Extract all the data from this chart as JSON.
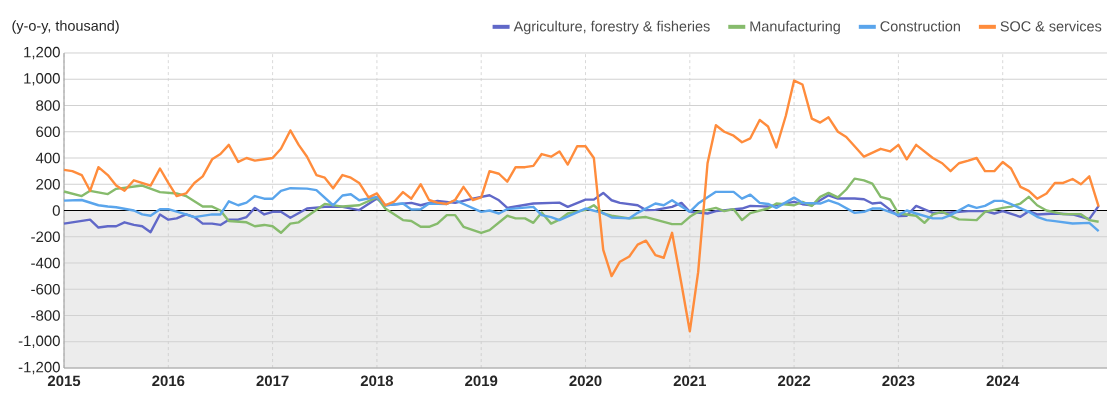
{
  "chart_data": {
    "type": "line",
    "ylabel": "(y-o-y, thousand)",
    "xlim": [
      "2015",
      "2025"
    ],
    "xticks": [
      "2015",
      "2016",
      "2017",
      "2018",
      "2019",
      "2020",
      "2021",
      "2022",
      "2023",
      "2024"
    ],
    "ylim": [
      -1200,
      1200
    ],
    "yticks": [
      {
        "value": -1200,
        "label": "-1,200"
      },
      {
        "value": -1000,
        "label": "-1,000"
      },
      -800,
      -600,
      -400,
      -200,
      0,
      200,
      400,
      600,
      800,
      {
        "value": 1000,
        "label": "1,000"
      },
      {
        "value": 1200,
        "label": "1,200"
      }
    ],
    "grid": true,
    "legend": "top right",
    "line_style": "solid",
    "bands": [
      {
        "axis": "y",
        "from": -1200,
        "to": 0,
        "color": "#ececec"
      }
    ],
    "ref_lines": [
      {
        "axis": "y",
        "value": 0,
        "color": "#000000"
      }
    ],
    "series": [
      {
        "name": "Agriculture, forestry & fisheries",
        "color": "#6068c8",
        "x": [
          "2015-01",
          "2015-04",
          "2015-05",
          "2015-06",
          "2015-07",
          "2015-08",
          "2015-09",
          "2015-10",
          "2015-11",
          "2015-12",
          "2016-01",
          "2016-02",
          "2016-03",
          "2016-04",
          "2016-05",
          "2016-06",
          "2016-07",
          "2016-08",
          "2016-09",
          "2016-10",
          "2016-11",
          "2016-12",
          "2017-01",
          "2017-02",
          "2017-03",
          "2017-05",
          "2017-07",
          "2017-09",
          "2017-11",
          "2018-01",
          "2018-02",
          "2018-05",
          "2018-06",
          "2018-08",
          "2018-10",
          "2018-12",
          "2019-02",
          "2019-03",
          "2019-04",
          "2019-07",
          "2019-10",
          "2019-11",
          "2020-01",
          "2020-02",
          "2020-03",
          "2020-04",
          "2020-05",
          "2020-07",
          "2020-08",
          "2020-09",
          "2020-11",
          "2020-12",
          "2021-01",
          "2021-03",
          "2021-04",
          "2021-07",
          "2021-08",
          "2021-10",
          "2022-01",
          "2022-02",
          "2022-03",
          "2022-05",
          "2022-06",
          "2022-08",
          "2022-09",
          "2022-10",
          "2022-11",
          "2023-01",
          "2023-02",
          "2023-03",
          "2023-05",
          "2023-07",
          "2023-09",
          "2023-11",
          "2023-12",
          "2024-01",
          "2024-03",
          "2024-04",
          "2024-05",
          "2024-07",
          "2024-09",
          "2024-11",
          "2024-12"
        ],
        "values": [
          -100,
          -70,
          -130,
          -120,
          -120,
          -90,
          -110,
          -120,
          -165,
          -30,
          -70,
          -60,
          -30,
          -50,
          -100,
          -100,
          -110,
          -70,
          -70,
          -50,
          20,
          -30,
          -10,
          -10,
          -55,
          15,
          28,
          28,
          3,
          91,
          40,
          58,
          40,
          73,
          58,
          91,
          116,
          78,
          20,
          53,
          60,
          28,
          83,
          83,
          134,
          78,
          58,
          40,
          3,
          5,
          28,
          58,
          -10,
          -23,
          -5,
          15,
          35,
          30,
          66,
          48,
          40,
          116,
          91,
          91,
          86,
          53,
          60,
          -43,
          -40,
          35,
          -18,
          -15,
          -5,
          -5,
          -23,
          -5,
          -48,
          -5,
          -30,
          -23,
          -30,
          -66,
          35
        ]
      },
      {
        "name": "Manufacturing",
        "color": "#86bb6c",
        "x": [
          "2015-01",
          "2015-03",
          "2015-04",
          "2015-06",
          "2015-07",
          "2015-10",
          "2015-12",
          "2016-02",
          "2016-03",
          "2016-05",
          "2016-06",
          "2016-07",
          "2016-08",
          "2016-10",
          "2016-11",
          "2016-12",
          "2017-01",
          "2017-02",
          "2017-03",
          "2017-04",
          "2017-07",
          "2017-09",
          "2017-11",
          "2018-01",
          "2018-02",
          "2018-04",
          "2018-05",
          "2018-06",
          "2018-07",
          "2018-08",
          "2018-09",
          "2018-10",
          "2018-11",
          "2019-01",
          "2019-02",
          "2019-04",
          "2019-05",
          "2019-06",
          "2019-07",
          "2019-08",
          "2019-09",
          "2019-10",
          "2019-11",
          "2020-01",
          "2020-02",
          "2020-03",
          "2020-04",
          "2020-06",
          "2020-08",
          "2020-09",
          "2020-11",
          "2020-12",
          "2021-01",
          "2021-02",
          "2021-04",
          "2021-05",
          "2021-06",
          "2021-07",
          "2021-08",
          "2021-10",
          "2021-11",
          "2022-01",
          "2022-02",
          "2022-03",
          "2022-04",
          "2022-05",
          "2022-06",
          "2022-07",
          "2022-08",
          "2022-09",
          "2022-10",
          "2022-11",
          "2022-12",
          "2023-01",
          "2023-02",
          "2023-03",
          "2023-04",
          "2023-05",
          "2023-06",
          "2023-07",
          "2023-08",
          "2023-10",
          "2023-11",
          "2024-01",
          "2024-02",
          "2024-03",
          "2024-04",
          "2024-05",
          "2024-06",
          "2024-08",
          "2024-10",
          "2024-11",
          "2024-12"
        ],
        "values": [
          145,
          110,
          150,
          125,
          165,
          190,
          140,
          130,
          110,
          30,
          30,
          0,
          -80,
          -90,
          -120,
          -110,
          -120,
          -170,
          -100,
          -90,
          50,
          30,
          40,
          100,
          15,
          -73,
          -80,
          -124,
          -124,
          -100,
          -35,
          -35,
          -124,
          -170,
          -150,
          -40,
          -60,
          -60,
          -94,
          -15,
          -100,
          -70,
          -23,
          5,
          40,
          -23,
          -40,
          -60,
          -50,
          -70,
          -104,
          -104,
          -48,
          -10,
          20,
          -5,
          10,
          -73,
          -20,
          15,
          53,
          40,
          66,
          35,
          104,
          134,
          100,
          160,
          243,
          230,
          205,
          104,
          84,
          -23,
          -30,
          -40,
          -94,
          -30,
          -10,
          -40,
          -68,
          -73,
          -10,
          20,
          30,
          53,
          104,
          40,
          0,
          -28,
          -28,
          -73,
          -86
        ]
      },
      {
        "name": "Construction",
        "color": "#5aa5ec",
        "x": [
          "2015-01",
          "2015-03",
          "2015-05",
          "2015-06",
          "2015-07",
          "2015-09",
          "2015-10",
          "2015-11",
          "2015-12",
          "2016-01",
          "2016-03",
          "2016-04",
          "2016-06",
          "2016-07",
          "2016-08",
          "2016-09",
          "2016-10",
          "2016-11",
          "2016-12",
          "2017-01",
          "2017-02",
          "2017-03",
          "2017-05",
          "2017-06",
          "2017-08",
          "2017-09",
          "2017-10",
          "2017-11",
          "2018-01",
          "2018-02",
          "2018-04",
          "2018-05",
          "2018-06",
          "2018-07",
          "2018-09",
          "2018-10",
          "2019-01",
          "2019-02",
          "2019-03",
          "2019-04",
          "2019-07",
          "2019-08",
          "2019-09",
          "2019-10",
          "2020-01",
          "2020-03",
          "2020-04",
          "2020-06",
          "2020-07",
          "2020-09",
          "2020-10",
          "2020-11",
          "2020-12",
          "2021-01",
          "2021-02",
          "2021-04",
          "2021-06",
          "2021-07",
          "2021-08",
          "2021-09",
          "2021-10",
          "2021-11",
          "2022-01",
          "2022-02",
          "2022-04",
          "2022-05",
          "2022-06",
          "2022-08",
          "2022-09",
          "2022-10",
          "2022-11",
          "2023-01",
          "2023-02",
          "2023-03",
          "2023-05",
          "2023-06",
          "2023-07",
          "2023-09",
          "2023-10",
          "2023-11",
          "2023-12",
          "2024-01",
          "2024-02",
          "2024-04",
          "2024-05",
          "2024-06",
          "2024-07",
          "2024-09",
          "2024-11",
          "2024-12"
        ],
        "values": [
          75,
          80,
          40,
          30,
          25,
          0,
          -30,
          -40,
          10,
          10,
          -30,
          -50,
          -30,
          -30,
          70,
          40,
          60,
          110,
          90,
          90,
          150,
          170,
          167,
          155,
          40,
          114,
          124,
          78,
          104,
          40,
          53,
          8,
          10,
          53,
          50,
          78,
          -10,
          0,
          -23,
          10,
          28,
          -35,
          -50,
          -73,
          15,
          -20,
          -53,
          -60,
          -18,
          53,
          40,
          78,
          30,
          -10,
          53,
          142,
          142,
          90,
          121,
          58,
          50,
          20,
          98,
          58,
          53,
          78,
          53,
          -18,
          -10,
          15,
          15,
          -35,
          0,
          -23,
          -60,
          -60,
          -35,
          40,
          20,
          35,
          73,
          73,
          48,
          -10,
          -48,
          -73,
          -81,
          -99,
          -94,
          -157
        ]
      },
      {
        "name": "SOC & services",
        "color": "#ff8c3c",
        "x": [
          "2015-01",
          "2015-02",
          "2015-03",
          "2015-04",
          "2015-05",
          "2015-06",
          "2015-07",
          "2015-08",
          "2015-09",
          "2015-10",
          "2015-11",
          "2015-12",
          "2016-01",
          "2016-02",
          "2016-03",
          "2016-04",
          "2016-05",
          "2016-06",
          "2016-07",
          "2016-08",
          "2016-09",
          "2016-10",
          "2016-11",
          "2016-12",
          "2017-01",
          "2017-02",
          "2017-03",
          "2017-04",
          "2017-05",
          "2017-06",
          "2017-07",
          "2017-08",
          "2017-09",
          "2017-10",
          "2017-11",
          "2017-12",
          "2018-01",
          "2018-02",
          "2018-03",
          "2018-04",
          "2018-05",
          "2018-06",
          "2018-07",
          "2018-08",
          "2018-09",
          "2018-10",
          "2018-11",
          "2018-12",
          "2019-01",
          "2019-02",
          "2019-03",
          "2019-04",
          "2019-05",
          "2019-06",
          "2019-07",
          "2019-08",
          "2019-09",
          "2019-10",
          "2019-11",
          "2019-12",
          "2020-01",
          "2020-02",
          "2020-03",
          "2020-04",
          "2020-05",
          "2020-06",
          "2020-07",
          "2020-08",
          "2020-09",
          "2020-10",
          "2020-11",
          "2020-12",
          "2021-01",
          "2021-02",
          "2021-03",
          "2021-04",
          "2021-05",
          "2021-06",
          "2021-07",
          "2021-08",
          "2021-09",
          "2021-10",
          "2021-11",
          "2021-12",
          "2022-01",
          "2022-02",
          "2022-03",
          "2022-04",
          "2022-05",
          "2022-06",
          "2022-07",
          "2022-08",
          "2022-09",
          "2022-10",
          "2022-11",
          "2022-12",
          "2023-01",
          "2023-02",
          "2023-03",
          "2023-04",
          "2023-05",
          "2023-06",
          "2023-07",
          "2023-08",
          "2023-09",
          "2023-10",
          "2023-11",
          "2023-12",
          "2024-01",
          "2024-02",
          "2024-03",
          "2024-04",
          "2024-05",
          "2024-06",
          "2024-07",
          "2024-08",
          "2024-09",
          "2024-10",
          "2024-11",
          "2024-12"
        ],
        "values": [
          310,
          300,
          270,
          150,
          330,
          270,
          190,
          150,
          230,
          210,
          190,
          320,
          210,
          110,
          130,
          210,
          260,
          390,
          430,
          500,
          370,
          400,
          380,
          390,
          400,
          470,
          610,
          500,
          410,
          270,
          250,
          170,
          270,
          250,
          210,
          100,
          130,
          40,
          70,
          140,
          90,
          200,
          80,
          60,
          50,
          80,
          180,
          80,
          100,
          300,
          280,
          220,
          330,
          330,
          340,
          430,
          410,
          450,
          350,
          490,
          490,
          400,
          -300,
          -500,
          -390,
          -350,
          -260,
          -230,
          -340,
          -360,
          -170,
          -560,
          -920,
          -470,
          360,
          650,
          600,
          570,
          520,
          550,
          690,
          640,
          480,
          720,
          990,
          960,
          700,
          670,
          710,
          600,
          560,
          490,
          410,
          440,
          470,
          450,
          500,
          390,
          500,
          450,
          400,
          360,
          300,
          360,
          380,
          400,
          300,
          300,
          370,
          320,
          180,
          150,
          90,
          130,
          210,
          210,
          240,
          200,
          260,
          30
        ]
      }
    ]
  }
}
